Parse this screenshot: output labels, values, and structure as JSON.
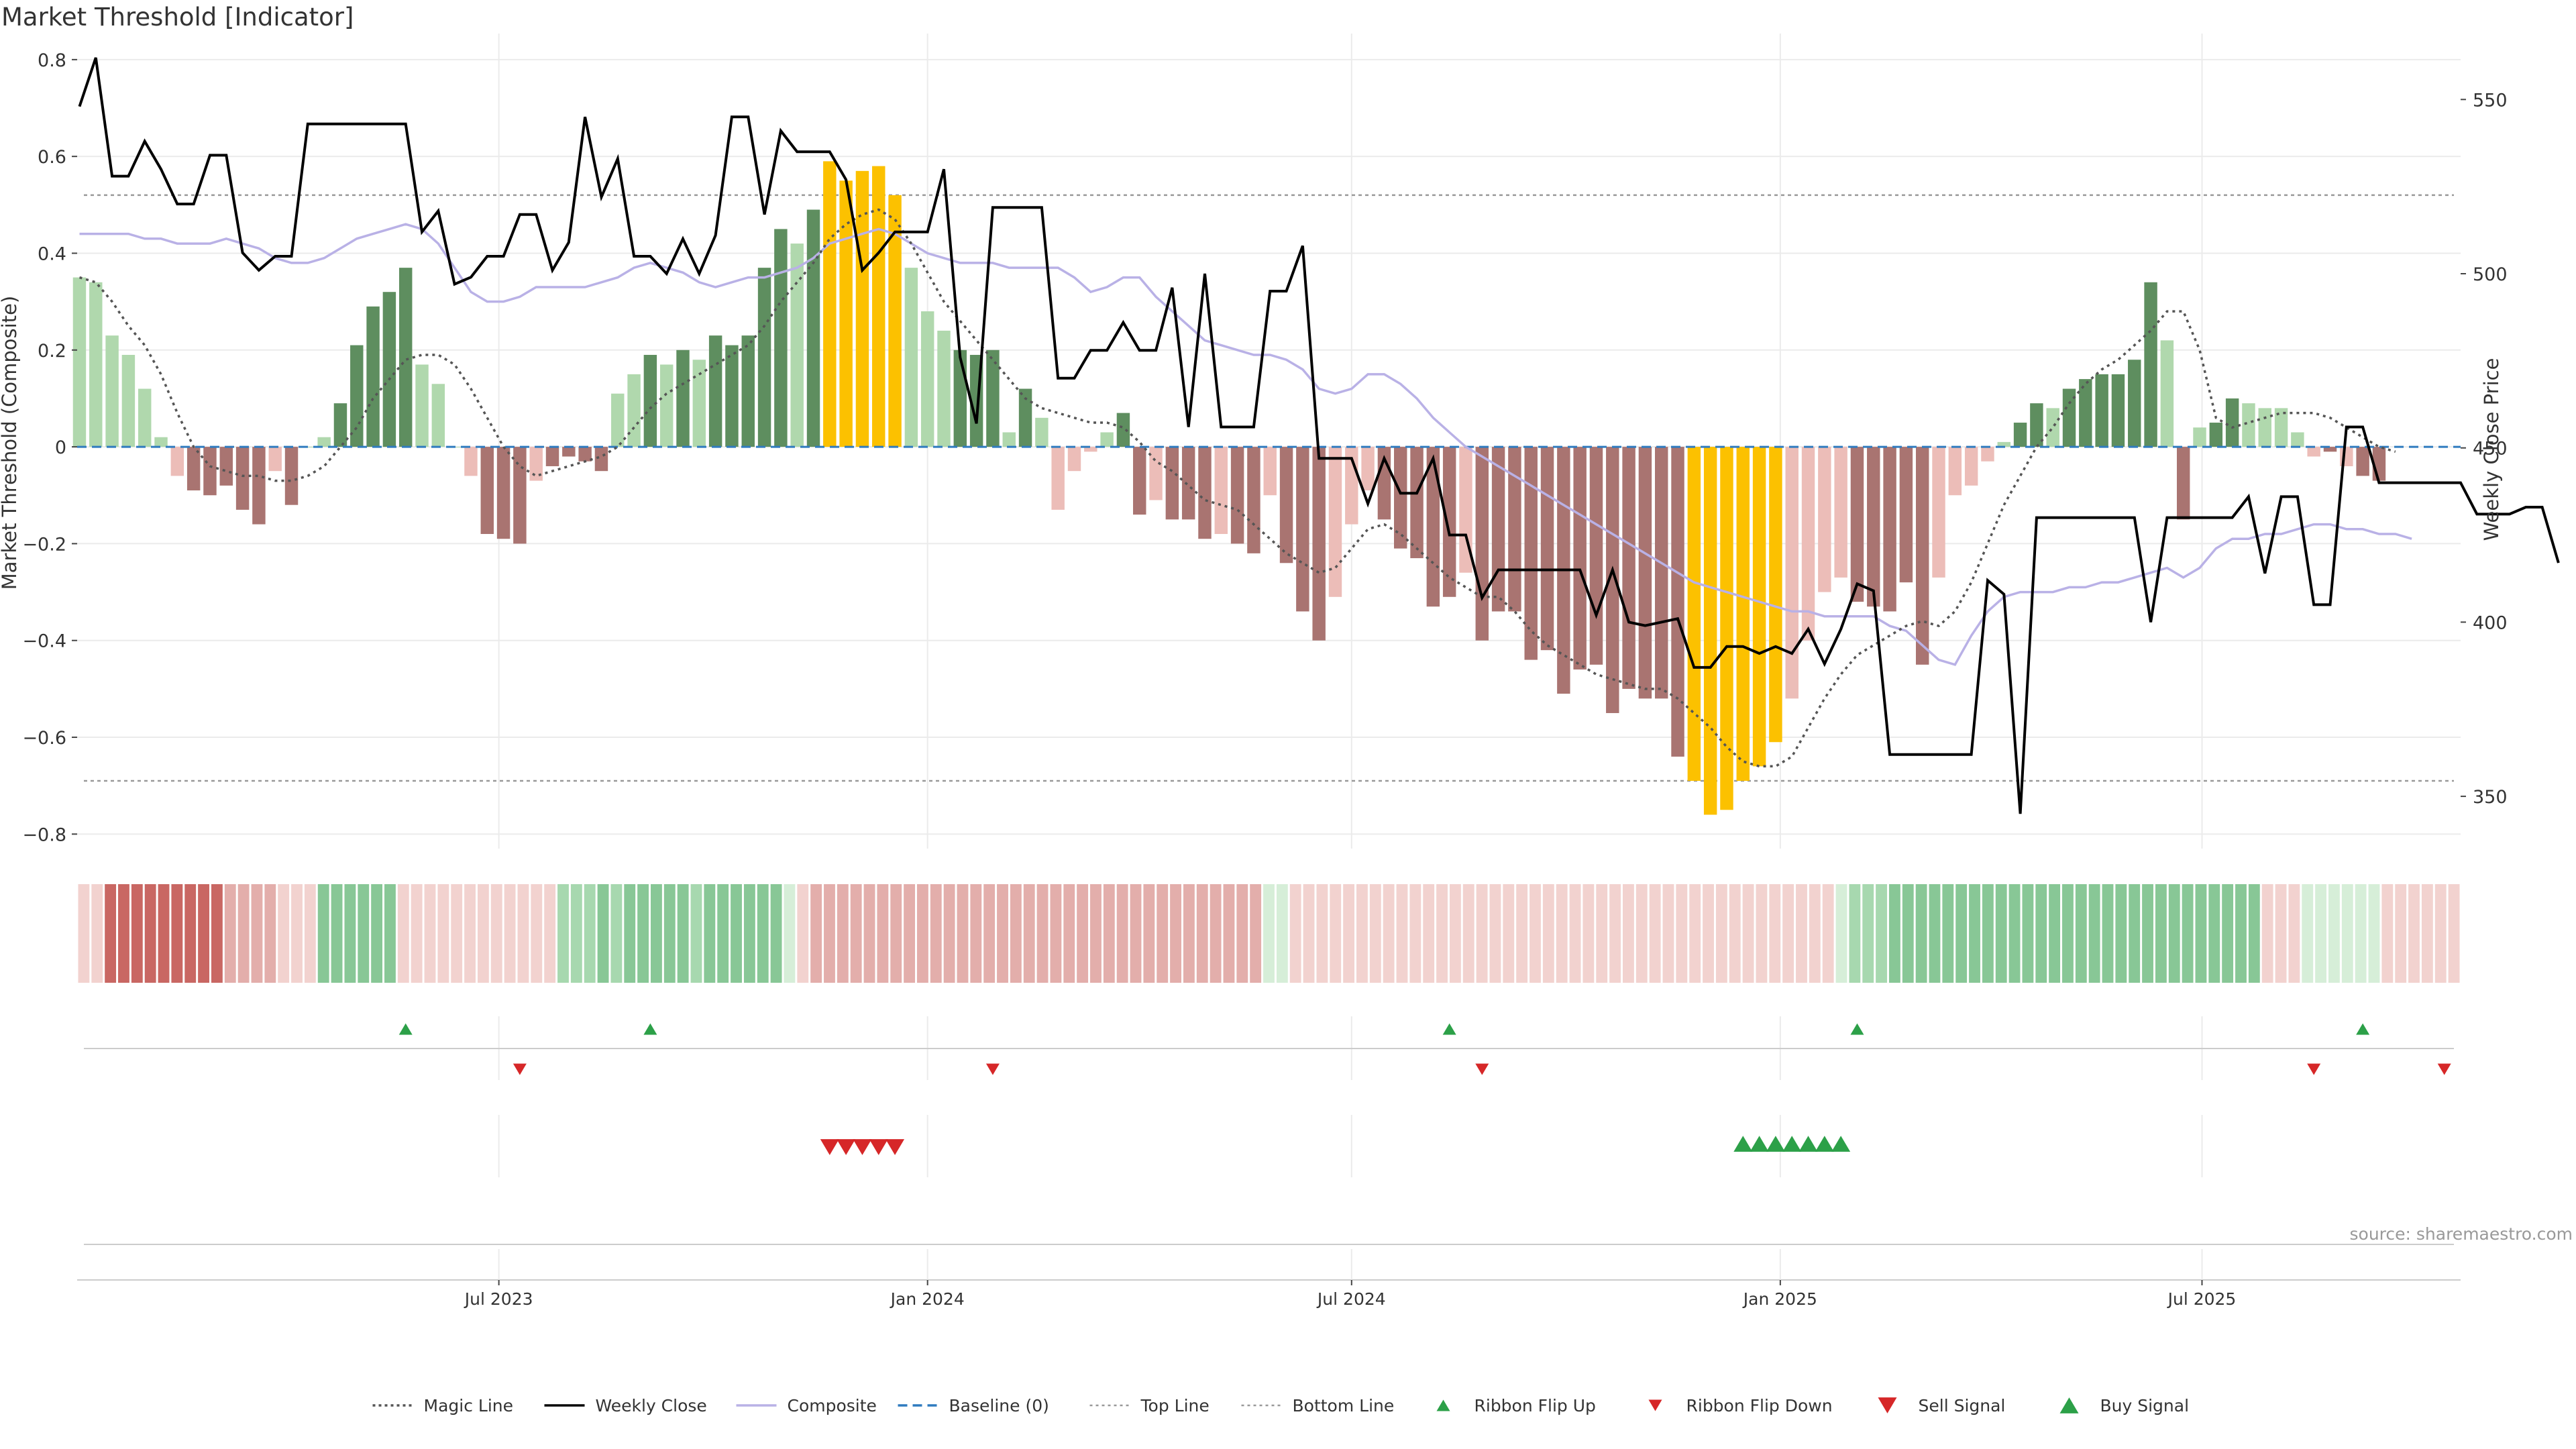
{
  "title": "Market Threshold [Indicator]",
  "source": "source: sharemaestro.com",
  "chart_data": {
    "type": "bar",
    "y_left_label": "Market Threshold (Composite)",
    "y_left_ticks": [
      0.8,
      0.6,
      0.4,
      0.2,
      0,
      -0.2,
      -0.4,
      -0.6,
      -0.8
    ],
    "y_left_tick_labels": [
      "0.8",
      "0.6",
      "0.4",
      "0.2",
      "0",
      "−0.2",
      "−0.4",
      "−0.6",
      "−0.8"
    ],
    "y_left_range": [
      -0.83,
      0.84
    ],
    "y_right_label": "Weekly Close Price",
    "y_right_ticks": [
      550,
      500,
      450,
      400,
      350
    ],
    "y_right_range": [
      335,
      567
    ],
    "top_line": 0.52,
    "bottom_line": -0.69,
    "x_range": [
      "2023-01-01",
      "2025-10-20"
    ],
    "x_ticks": [
      {
        "label": "Jul 2023",
        "date": "2023-07-01"
      },
      {
        "label": "Jan 2024",
        "date": "2024-01-01"
      },
      {
        "label": "Jul 2024",
        "date": "2024-07-01"
      },
      {
        "label": "Jan 2025",
        "date": "2025-01-01"
      },
      {
        "label": "Jul 2025",
        "date": "2025-07-01"
      }
    ],
    "start_date": "2023-01-02",
    "week_step_days": 7,
    "composite": [
      0.35,
      0.34,
      0.23,
      0.19,
      0.12,
      0.02,
      -0.06,
      -0.09,
      -0.1,
      -0.08,
      -0.13,
      -0.16,
      -0.05,
      -0.12,
      0.0,
      0.02,
      0.09,
      0.21,
      0.29,
      0.32,
      0.37,
      0.17,
      0.13,
      0.0,
      -0.06,
      -0.18,
      -0.19,
      -0.2,
      -0.07,
      -0.04,
      -0.02,
      -0.03,
      -0.05,
      0.11,
      0.15,
      0.19,
      0.17,
      0.2,
      0.18,
      0.23,
      0.21,
      0.23,
      0.37,
      0.45,
      0.42,
      0.49,
      0.59,
      0.55,
      0.57,
      0.58,
      0.52,
      0.37,
      0.28,
      0.24,
      0.2,
      0.19,
      0.2,
      0.03,
      0.12,
      0.06,
      -0.13,
      -0.05,
      -0.01,
      0.03,
      0.07,
      -0.14,
      -0.11,
      -0.15,
      -0.15,
      -0.19,
      -0.18,
      -0.2,
      -0.22,
      -0.1,
      -0.24,
      -0.34,
      -0.4,
      -0.31,
      -0.16,
      -0.09,
      -0.15,
      -0.21,
      -0.23,
      -0.33,
      -0.31,
      -0.26,
      -0.4,
      -0.34,
      -0.34,
      -0.44,
      -0.42,
      -0.51,
      -0.46,
      -0.45,
      -0.55,
      -0.5,
      -0.52,
      -0.52,
      -0.64,
      -0.69,
      -0.76,
      -0.75,
      -0.69,
      -0.66,
      -0.61,
      -0.52,
      -0.4,
      -0.3,
      -0.27,
      -0.32,
      -0.33,
      -0.34,
      -0.28,
      -0.45,
      -0.27,
      -0.1,
      -0.08,
      -0.03,
      0.01,
      0.05,
      0.09,
      0.08,
      0.12,
      0.14,
      0.15,
      0.15,
      0.18,
      0.34,
      0.22,
      -0.15,
      0.04,
      0.05,
      0.1,
      0.09,
      0.08,
      0.08,
      0.03,
      -0.02,
      -0.01,
      -0.04,
      -0.06,
      -0.07
    ],
    "bar_category": [
      "lg",
      "lg",
      "lg",
      "lg",
      "lg",
      "lg",
      "lr",
      "dr",
      "dr",
      "dr",
      "dr",
      "dr",
      "lr",
      "dr",
      "lg",
      "lg",
      "dg",
      "dg",
      "dg",
      "dg",
      "dg",
      "lg",
      "lg",
      "lg",
      "lr",
      "dr",
      "dr",
      "dr",
      "lr",
      "dr",
      "dr",
      "dr",
      "dr",
      "lg",
      "lg",
      "dg",
      "lg",
      "dg",
      "lg",
      "dg",
      "dg",
      "dg",
      "dg",
      "dg",
      "lg",
      "dg",
      "y",
      "y",
      "y",
      "y",
      "y",
      "lg",
      "lg",
      "lg",
      "dg",
      "dg",
      "dg",
      "lg",
      "dg",
      "lg",
      "lr",
      "lr",
      "lr",
      "lg",
      "dg",
      "dr",
      "lr",
      "dr",
      "dr",
      "dr",
      "lr",
      "dr",
      "dr",
      "lr",
      "dr",
      "dr",
      "dr",
      "lr",
      "lr",
      "lr",
      "dr",
      "dr",
      "dr",
      "dr",
      "dr",
      "lr",
      "dr",
      "dr",
      "dr",
      "dr",
      "dr",
      "dr",
      "dr",
      "dr",
      "dr",
      "dr",
      "dr",
      "dr",
      "dr",
      "y",
      "y",
      "y",
      "y",
      "y",
      "y",
      "lr",
      "lr",
      "lr",
      "lr",
      "dr",
      "dr",
      "dr",
      "dr",
      "dr",
      "lr",
      "lr",
      "lr",
      "lr",
      "lg",
      "dg",
      "dg",
      "lg",
      "dg",
      "dg",
      "dg",
      "dg",
      "dg",
      "dg",
      "lg",
      "dr",
      "lg",
      "dg",
      "dg",
      "lg",
      "lg",
      "lg",
      "lg",
      "lr",
      "dr",
      "lr",
      "dr",
      "dr"
    ],
    "magic_line": [
      0.35,
      0.34,
      0.3,
      0.25,
      0.21,
      0.15,
      0.07,
      0.0,
      -0.04,
      -0.05,
      -0.06,
      -0.06,
      -0.07,
      -0.07,
      -0.06,
      -0.04,
      0.0,
      0.04,
      0.1,
      0.14,
      0.18,
      0.19,
      0.19,
      0.17,
      0.12,
      0.06,
      0.0,
      -0.04,
      -0.06,
      -0.05,
      -0.04,
      -0.03,
      -0.02,
      0.0,
      0.04,
      0.08,
      0.11,
      0.13,
      0.15,
      0.17,
      0.19,
      0.21,
      0.25,
      0.3,
      0.34,
      0.38,
      0.43,
      0.46,
      0.48,
      0.49,
      0.47,
      0.42,
      0.36,
      0.3,
      0.26,
      0.22,
      0.18,
      0.14,
      0.1,
      0.08,
      0.07,
      0.06,
      0.05,
      0.05,
      0.04,
      0.01,
      -0.03,
      -0.05,
      -0.08,
      -0.11,
      -0.12,
      -0.13,
      -0.16,
      -0.19,
      -0.22,
      -0.24,
      -0.26,
      -0.25,
      -0.21,
      -0.17,
      -0.16,
      -0.18,
      -0.21,
      -0.24,
      -0.27,
      -0.29,
      -0.31,
      -0.31,
      -0.34,
      -0.38,
      -0.41,
      -0.43,
      -0.45,
      -0.47,
      -0.48,
      -0.49,
      -0.5,
      -0.5,
      -0.52,
      -0.55,
      -0.58,
      -0.62,
      -0.65,
      -0.66,
      -0.66,
      -0.64,
      -0.58,
      -0.52,
      -0.47,
      -0.43,
      -0.41,
      -0.39,
      -0.37,
      -0.36,
      -0.37,
      -0.34,
      -0.28,
      -0.2,
      -0.12,
      -0.06,
      0.0,
      0.04,
      0.09,
      0.13,
      0.16,
      0.18,
      0.21,
      0.24,
      0.28,
      0.28,
      0.2,
      0.06,
      0.04,
      0.05,
      0.06,
      0.07,
      0.07,
      0.07,
      0.06,
      0.04,
      0.02,
      0.0,
      -0.01
    ],
    "composite_line": [
      0.44,
      0.44,
      0.44,
      0.44,
      0.43,
      0.43,
      0.42,
      0.42,
      0.42,
      0.43,
      0.42,
      0.41,
      0.39,
      0.38,
      0.38,
      0.39,
      0.41,
      0.43,
      0.44,
      0.45,
      0.46,
      0.45,
      0.42,
      0.37,
      0.32,
      0.3,
      0.3,
      0.31,
      0.33,
      0.33,
      0.33,
      0.33,
      0.34,
      0.35,
      0.37,
      0.38,
      0.37,
      0.36,
      0.34,
      0.33,
      0.34,
      0.35,
      0.35,
      0.36,
      0.37,
      0.39,
      0.42,
      0.43,
      0.44,
      0.45,
      0.44,
      0.42,
      0.4,
      0.39,
      0.38,
      0.38,
      0.38,
      0.37,
      0.37,
      0.37,
      0.37,
      0.35,
      0.32,
      0.33,
      0.35,
      0.35,
      0.31,
      0.28,
      0.25,
      0.22,
      0.21,
      0.2,
      0.19,
      0.19,
      0.18,
      0.16,
      0.12,
      0.11,
      0.12,
      0.15,
      0.15,
      0.13,
      0.1,
      0.06,
      0.03,
      0.0,
      -0.02,
      -0.04,
      -0.06,
      -0.08,
      -0.1,
      -0.12,
      -0.14,
      -0.16,
      -0.18,
      -0.2,
      -0.22,
      -0.24,
      -0.26,
      -0.28,
      -0.29,
      -0.3,
      -0.31,
      -0.32,
      -0.33,
      -0.34,
      -0.34,
      -0.35,
      -0.35,
      -0.35,
      -0.35,
      -0.37,
      -0.38,
      -0.41,
      -0.44,
      -0.45,
      -0.39,
      -0.34,
      -0.31,
      -0.3,
      -0.3,
      -0.3,
      -0.29,
      -0.29,
      -0.28,
      -0.28,
      -0.27,
      -0.26,
      -0.25,
      -0.27,
      -0.25,
      -0.21,
      -0.19,
      -0.19,
      -0.18,
      -0.18,
      -0.17,
      -0.16,
      -0.16,
      -0.17,
      -0.17,
      -0.18,
      -0.18,
      -0.19
    ],
    "weekly_close": [
      548,
      562,
      528,
      528,
      538,
      530,
      520,
      520,
      534,
      534,
      506,
      501,
      505,
      505,
      543,
      543,
      543,
      543,
      543,
      543,
      543,
      512,
      518,
      497,
      499,
      505,
      505,
      517,
      517,
      501,
      509,
      545,
      522,
      533,
      505,
      505,
      500,
      510,
      500,
      511,
      545,
      545,
      517,
      541,
      535,
      535,
      535,
      527,
      501,
      506,
      512,
      512,
      512,
      530,
      476,
      457,
      519,
      519,
      519,
      519,
      470,
      470,
      478,
      478,
      486,
      478,
      478,
      496,
      456,
      500,
      456,
      456,
      456,
      495,
      495,
      508,
      447,
      447,
      447,
      434,
      447,
      437,
      437,
      447,
      425,
      425,
      407,
      415,
      415,
      415,
      415,
      415,
      415,
      402,
      415,
      400,
      399,
      400,
      401,
      387,
      387,
      393,
      393,
      391,
      393,
      391,
      398,
      388,
      398,
      411,
      409,
      362,
      362,
      362,
      362,
      362,
      362,
      412,
      408,
      345,
      430,
      430,
      430,
      430,
      430,
      430,
      430,
      400,
      430,
      430,
      430,
      430,
      430,
      436,
      414,
      436,
      436,
      405,
      405,
      456,
      456,
      440,
      440,
      440,
      440,
      440,
      440,
      431,
      431,
      431,
      433,
      433,
      417
    ],
    "ribbon": [
      [
        "lr",
        "lr",
        "dr",
        "dr",
        "dr",
        "dr",
        "dr",
        "dr",
        "dr",
        "dr",
        "dr",
        "mr",
        "mr",
        "mr",
        "mr",
        "lr",
        "lr",
        "lr"
      ],
      [
        "mg",
        "mg",
        "mg",
        "mg",
        "mg",
        "mg",
        "lr",
        "lr",
        "lr",
        "lr",
        "lr",
        "lr",
        "lr",
        "lr",
        "lr",
        "lr",
        "lr",
        "lr"
      ],
      [
        "lg",
        "lg",
        "lg",
        "mg",
        "lg",
        "mg",
        "mg",
        "mg",
        "mg",
        "mg",
        "lg",
        "mg",
        "mg",
        "mg",
        "mg",
        "mg",
        "mg",
        "xg"
      ],
      [
        "lr",
        "mr",
        "mr",
        "mr",
        "mr",
        "mr",
        "mr",
        "mr",
        "mr",
        "mr",
        "mr",
        "mr",
        "mr",
        "mr",
        "mr",
        "mr",
        "mr",
        "mr"
      ],
      [
        "mr",
        "mr",
        "mr",
        "mr",
        "mr",
        "mr",
        "mr",
        "mr",
        "mr",
        "mr",
        "mr",
        "mr",
        "mr",
        "mr",
        "mr",
        "mr",
        "mr",
        "xg"
      ],
      [
        "xg",
        "lr",
        "lr",
        "lr",
        "lr",
        "lr",
        "lr",
        "lr",
        "lr",
        "lr",
        "lr",
        "lr",
        "lr",
        "lr",
        "lr",
        "lr",
        "lr",
        "lr"
      ],
      [
        "lr",
        "lr",
        "lr",
        "lr",
        "lr",
        "lr",
        "lr",
        "lr",
        "lr",
        "lr",
        "lr",
        "lr",
        "lr",
        "lr",
        "lr",
        "lr",
        "lr",
        "lr"
      ],
      [
        "lr",
        "lr",
        "lr",
        "lr",
        "lr",
        "lr",
        "xg",
        "lg",
        "lg",
        "lg",
        "mg",
        "mg",
        "mg",
        "mg",
        "mg",
        "mg",
        "mg",
        "mg"
      ],
      [
        "mg",
        "mg",
        "mg",
        "mg",
        "mg",
        "mg",
        "mg",
        "mg",
        "mg",
        "mg",
        "mg",
        "mg",
        "mg",
        "mg",
        "mg",
        "mg",
        "mg",
        "mg"
      ],
      [
        "mg",
        "mg",
        "lr",
        "lr",
        "lr",
        "xg",
        "xg",
        "xg",
        "xg",
        "xg",
        "xg",
        "lr",
        "lr",
        "lr",
        "lr",
        "lr",
        "lr"
      ]
    ],
    "ribbon_flip_up_dates": [
      "2023-05-22",
      "2023-09-04",
      "2024-08-12",
      "2025-02-03",
      "2025-09-08"
    ],
    "ribbon_flip_down_dates": [
      "2023-07-10",
      "2024-01-29",
      "2024-08-26",
      "2025-08-18",
      "2025-10-13"
    ],
    "sell_signal_dates": [
      "2023-11-20",
      "2023-11-27",
      "2023-12-04",
      "2023-12-11",
      "2023-12-18"
    ],
    "buy_signal_dates": [
      "2024-12-16",
      "2024-12-23",
      "2024-12-30",
      "2025-01-06",
      "2025-01-13",
      "2025-01-20",
      "2025-01-27"
    ],
    "legend_position": "bottom-center",
    "legend": [
      {
        "name": "Magic Line",
        "type": "line",
        "color": "#555555",
        "dash": "dotted"
      },
      {
        "name": "Weekly Close",
        "type": "line",
        "color": "#000000",
        "dash": "solid"
      },
      {
        "name": "Composite",
        "type": "line",
        "color": "#b9b1e6",
        "dash": "solid"
      },
      {
        "name": "Baseline (0)",
        "type": "line",
        "color": "#2f7bbf",
        "dash": "dashed"
      },
      {
        "name": "Top Line",
        "type": "line",
        "color": "#999999",
        "dash": "dotted-thin"
      },
      {
        "name": "Bottom Line",
        "type": "line",
        "color": "#999999",
        "dash": "dotted-thin"
      },
      {
        "name": "Ribbon Flip Up",
        "type": "marker-up",
        "color": "#2ca048"
      },
      {
        "name": "Ribbon Flip Down",
        "type": "marker-down",
        "color": "#d62728"
      },
      {
        "name": "Sell Signal",
        "type": "marker-down-large",
        "color": "#d62728"
      },
      {
        "name": "Buy Signal",
        "type": "marker-up-large",
        "color": "#2ca048"
      }
    ],
    "colors": {
      "dg": "#5e8e5f",
      "lg": "#b0d8ad",
      "dr": "#a97471",
      "lr": "#ecbdb8",
      "y": "#fcc100",
      "ribbon_dr": "#c96763",
      "ribbon_mr": "#e3aeab",
      "ribbon_lr": "#f2d2cf",
      "ribbon_mg": "#88c796",
      "ribbon_lg": "#a7d8af",
      "ribbon_xg": "#d6eed8",
      "grid": "#ebebeb",
      "baseline": "#2f7bbf",
      "price": "#000000",
      "composite_line": "#b9b1e6",
      "magic": "#555555",
      "threshold": "#999999",
      "up": "#2ca048",
      "down": "#d62728"
    }
  }
}
